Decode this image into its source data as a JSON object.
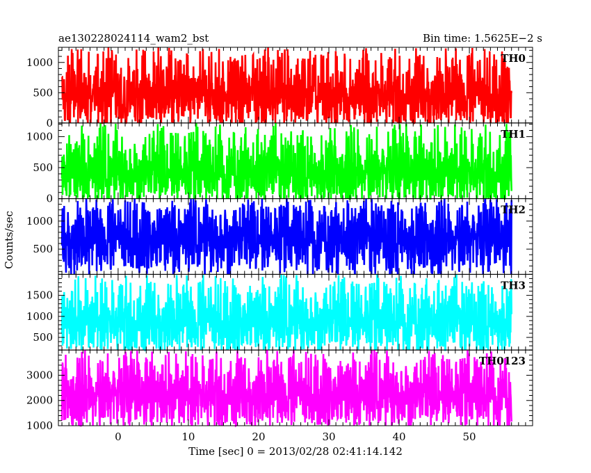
{
  "header": {
    "title": "ae130228024114_wam2_bst",
    "bin_time": "Bin time: 1.5625E−2 s"
  },
  "chart_data": {
    "type": "line",
    "title": "ae130228024114_wam2_bst",
    "xlabel": "Time [sec] 0 = 2013/02/28 02:41:14.142",
    "ylabel": "Counts/sec",
    "xlim": [
      -8.5,
      59.0
    ],
    "x_ticks": [
      0,
      10,
      20,
      30,
      40,
      50
    ],
    "x_range_data": [
      -8.0,
      56.0
    ],
    "grid": false,
    "series": [
      {
        "name": "TH0",
        "color": "#ff0000",
        "ylim": [
          0,
          1250
        ],
        "y_ticks": [
          0,
          500,
          1000
        ],
        "min": 0,
        "max": 1250,
        "mean": 480
      },
      {
        "name": "TH1",
        "color": "#00ff00",
        "ylim": [
          0,
          1220
        ],
        "y_ticks": [
          0,
          500,
          1000
        ],
        "min": 0,
        "max": 1220,
        "mean": 430
      },
      {
        "name": "TH2",
        "color": "#0000ff",
        "ylim": [
          50,
          1400
        ],
        "y_ticks": [
          500,
          1000
        ],
        "min": 50,
        "max": 1400,
        "mean": 700
      },
      {
        "name": "TH3",
        "color": "#00ffff",
        "ylim": [
          200,
          2000
        ],
        "y_ticks": [
          500,
          1000,
          1500
        ],
        "min": 200,
        "max": 2000,
        "mean": 900
      },
      {
        "name": "TH0123",
        "color": "#ff00ff",
        "ylim": [
          1000,
          4000
        ],
        "y_ticks": [
          1000,
          2000,
          3000
        ],
        "min": 1000,
        "max": 4000,
        "mean": 2250
      }
    ]
  }
}
